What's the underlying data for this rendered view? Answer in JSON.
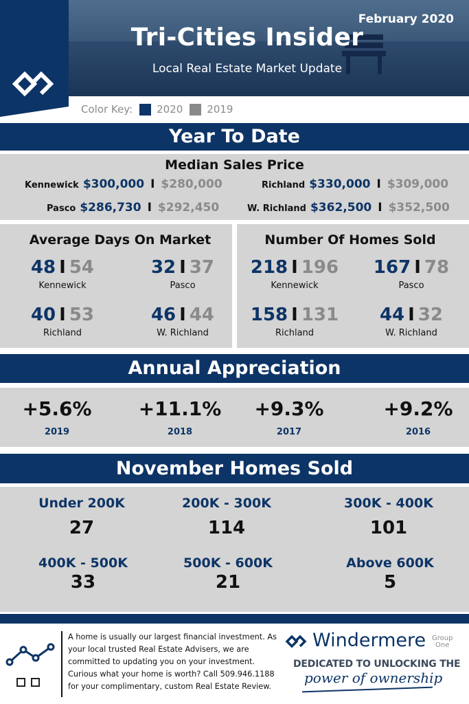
{
  "header": {
    "date": "February 2020",
    "title": "Tri-Cities Insider",
    "subtitle": "Local Real Estate Market Update"
  },
  "color_key": {
    "label": "Color Key:",
    "current": "2020",
    "previous": "2019",
    "colors": {
      "current": "#0d3466",
      "previous": "#8a8a8a"
    }
  },
  "ytd": {
    "heading": "Year To Date",
    "median": {
      "title": "Median Sales Price",
      "rows": [
        {
          "city": "Kennewick",
          "current": "$300,000",
          "previous": "$280,000"
        },
        {
          "city": "Richland",
          "current": "$330,000",
          "previous": "$309,000"
        },
        {
          "city": "Pasco",
          "current": "$286,730",
          "previous": "$292,450"
        },
        {
          "city": "W. Richland",
          "current": "$362,500",
          "previous": "$352,500"
        }
      ]
    },
    "days_on_market": {
      "title": "Average Days On Market",
      "items": [
        {
          "city": "Kennewick",
          "current": "48",
          "previous": "54"
        },
        {
          "city": "Pasco",
          "current": "32",
          "previous": "37"
        },
        {
          "city": "Richland",
          "current": "40",
          "previous": "53"
        },
        {
          "city": "W. Richland",
          "current": "46",
          "previous": "44"
        }
      ]
    },
    "homes_sold": {
      "title": "Number Of Homes Sold",
      "items": [
        {
          "city": "Kennewick",
          "current": "218",
          "previous": "196"
        },
        {
          "city": "Pasco",
          "current": "167",
          "previous": "78"
        },
        {
          "city": "Richland",
          "current": "158",
          "previous": "131"
        },
        {
          "city": "W. Richland",
          "current": "44",
          "previous": "32"
        }
      ]
    },
    "separator": "I"
  },
  "appreciation": {
    "heading": "Annual Appreciation",
    "items": [
      {
        "value": "+5.6%",
        "year": "2019"
      },
      {
        "value": "+11.1%",
        "year": "2018"
      },
      {
        "value": "+9.3%",
        "year": "2017"
      },
      {
        "value": "+9.2%",
        "year": "2016"
      }
    ]
  },
  "november": {
    "heading": "November Homes Sold",
    "items": [
      {
        "range": "Under 200K",
        "count": "27"
      },
      {
        "range": "200K - 300K",
        "count": "114"
      },
      {
        "range": "300K - 400K",
        "count": "101"
      },
      {
        "range": "400K - 500K",
        "count": "33"
      },
      {
        "range": "500K - 600K",
        "count": "21"
      },
      {
        "range": "Above 600K",
        "count": "5"
      }
    ]
  },
  "footer": {
    "text": "A home is usually our largest financial investment. As your local trusted Real Estate Advisers, we are committed to updating you on your investment.  Curious what your home is worth? Call 509.946.1188 for your complimentary, custom Real Estate Review.",
    "brand": {
      "name": "Windermere",
      "group_line1": "Group",
      "group_line2": "One",
      "tagline1": "DEDICATED TO UNLOCKING THE",
      "tagline2": "power of ownership"
    }
  }
}
